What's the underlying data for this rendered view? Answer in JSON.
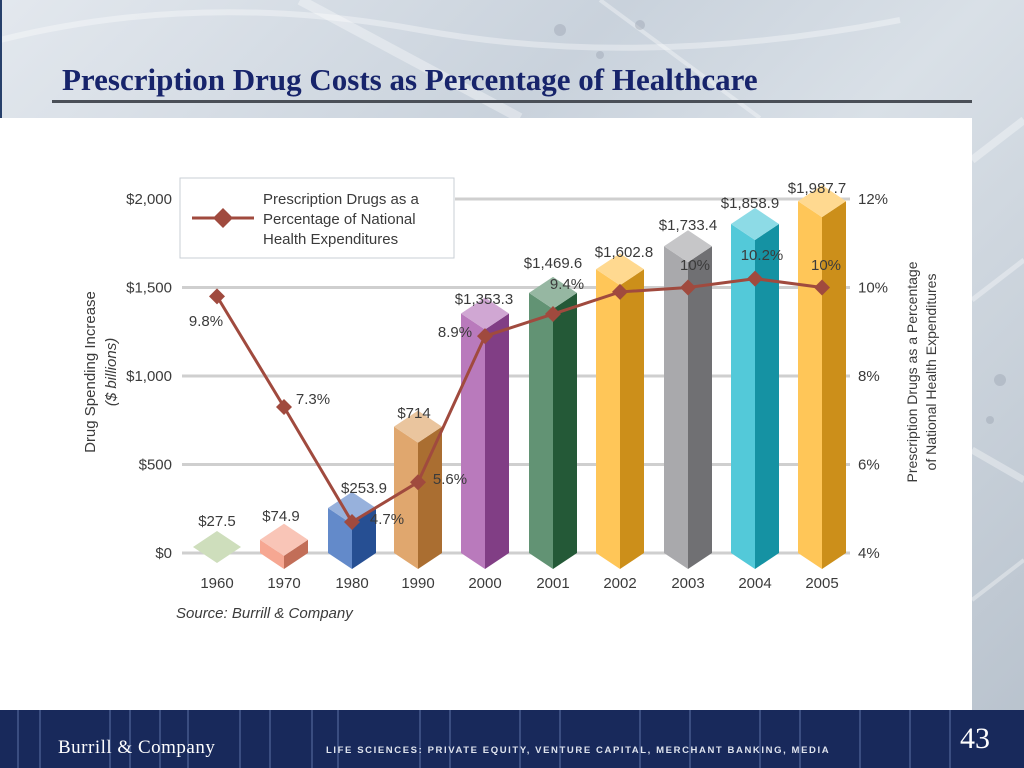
{
  "slide": {
    "title": "Prescription Drug Costs as Percentage of Healthcare",
    "brand": "Burrill & Company",
    "tagline": "LIFE SCIENCES: PRIVATE EQUITY, VENTURE CAPITAL, MERCHANT BANKING, MEDIA",
    "page_number": "43",
    "colors": {
      "title": "#17246b",
      "footer": "#18295b",
      "line": "#a04a3e"
    }
  },
  "chart_data": {
    "type": "bar",
    "categories": [
      "1960",
      "1970",
      "1980",
      "1990",
      "2000",
      "2001",
      "2002",
      "2003",
      "2004",
      "2005"
    ],
    "series": [
      {
        "values": [
          27.5,
          74.9,
          253.9,
          714,
          1353.3,
          1469.6,
          1602.8,
          1733.4,
          1858.9,
          1987.7
        ],
        "value_labels": [
          "$27.5",
          "$74.9",
          "$253.9",
          "$714",
          "$1,353.3",
          "$1,469.6",
          "$1,602.8",
          "$1,733.4",
          "$1,858.9",
          "$1,987.7"
        ],
        "colors": [
          "#9dbd78",
          "#f38a6e",
          "#2f63b8",
          "#d58a3d",
          "#a14ea6",
          "#2d6f45",
          "#ffb320",
          "#8c8c90",
          "#1ab7cc",
          "#ffb320"
        ]
      },
      {
        "name": "Prescription Drugs as a Percentage of National Health Expenditures",
        "type": "line",
        "values": [
          9.8,
          7.3,
          4.7,
          5.6,
          8.9,
          9.4,
          9.9,
          10,
          10.2,
          10
        ],
        "value_labels": [
          "9.8%",
          "7.3%",
          "4.7%",
          "5.6%",
          "8.9%",
          "9.4%",
          "",
          "10%",
          "10.2%",
          "10%"
        ],
        "color": "#a04a3e",
        "marker": "diamond"
      }
    ],
    "ylabel_left": [
      "Drug Spending Increase",
      "($ billions)"
    ],
    "ylabel_right": [
      "Prescription Drugs as a Percentage",
      "of National Health Expenditures"
    ],
    "ylim_left": [
      0,
      2000
    ],
    "ylim_right": [
      4,
      12
    ],
    "left_ticks": [
      "$0",
      "$500",
      "$1,000",
      "$1,500",
      "$2,000"
    ],
    "right_ticks": [
      "4%",
      "6%",
      "8%",
      "10%",
      "12%"
    ],
    "legend": {
      "label_lines": [
        "Prescription Drugs as a",
        "Percentage of National",
        "Health Expenditures"
      ],
      "position": "top-left"
    },
    "source": "Source: Burrill & Company",
    "grid": true
  }
}
